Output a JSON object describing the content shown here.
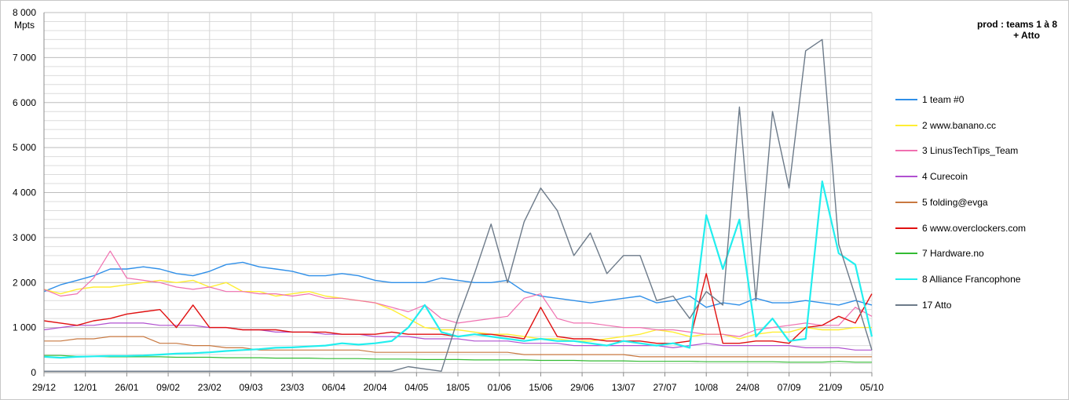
{
  "chart_data": {
    "type": "line",
    "title": [
      "prod : teams 1 à 8",
      "+ Atto"
    ],
    "y_unit": "Mpts",
    "ylim": [
      0,
      8000
    ],
    "y_ticks": [
      0,
      1000,
      2000,
      3000,
      4000,
      5000,
      6000,
      7000,
      8000
    ],
    "y_tick_labels": [
      "0",
      "1 000",
      "2 000",
      "3 000",
      "4 000",
      "5 000",
      "6 000",
      "7 000",
      "8 000"
    ],
    "x_tick_labels": [
      "29/12",
      "12/01",
      "26/01",
      "09/02",
      "23/02",
      "09/03",
      "23/03",
      "06/04",
      "20/04",
      "04/05",
      "18/05",
      "01/06",
      "15/06",
      "29/06",
      "13/07",
      "27/07",
      "10/08",
      "24/08",
      "07/09",
      "21/09",
      "05/10"
    ],
    "grid": true,
    "legend_position": "right",
    "series": [
      {
        "name": "1 team #0",
        "color": "#2f8fe8",
        "width": 1.4,
        "values": [
          1800,
          1950,
          2050,
          2150,
          2300,
          2300,
          2350,
          2300,
          2200,
          2150,
          2250,
          2400,
          2450,
          2350,
          2300,
          2250,
          2150,
          2150,
          2200,
          2150,
          2050,
          2000,
          2000,
          2000,
          2100,
          2050,
          2000,
          2000,
          2050,
          1800,
          1700,
          1650,
          1600,
          1550,
          1600,
          1650,
          1700,
          1550,
          1600,
          1700,
          1450,
          1550,
          1500,
          1650,
          1550,
          1550,
          1600,
          1550,
          1500,
          1600,
          1500
        ]
      },
      {
        "name": "2 www.banano.cc",
        "color": "#ffee33",
        "width": 1.4,
        "values": [
          1850,
          1750,
          1850,
          1900,
          1900,
          1950,
          2000,
          2050,
          2000,
          2050,
          1900,
          2000,
          1800,
          1800,
          1700,
          1750,
          1800,
          1700,
          1650,
          1600,
          1550,
          1400,
          1200,
          1000,
          950,
          950,
          900,
          850,
          850,
          800,
          750,
          750,
          700,
          700,
          750,
          800,
          850,
          950,
          900,
          800,
          850,
          850,
          750,
          850,
          900,
          900,
          1000,
          950,
          950,
          1000,
          1000
        ]
      },
      {
        "name": "3 LinusTechTips_Team",
        "color": "#f070b0",
        "width": 1.2,
        "values": [
          1850,
          1700,
          1750,
          2100,
          2700,
          2100,
          2050,
          2000,
          1900,
          1850,
          1900,
          1800,
          1800,
          1750,
          1750,
          1700,
          1750,
          1650,
          1650,
          1600,
          1550,
          1450,
          1350,
          1500,
          1200,
          1100,
          1150,
          1200,
          1250,
          1650,
          1750,
          1200,
          1100,
          1100,
          1050,
          1000,
          1000,
          950,
          950,
          900,
          850,
          850,
          800,
          950,
          1000,
          1050,
          1100,
          1050,
          1050,
          1450,
          1250
        ]
      },
      {
        "name": "4 Curecoin",
        "color": "#b050d0",
        "width": 1.2,
        "values": [
          950,
          1000,
          1050,
          1050,
          1100,
          1100,
          1100,
          1050,
          1050,
          1050,
          1000,
          1000,
          950,
          950,
          900,
          900,
          900,
          850,
          850,
          850,
          800,
          800,
          800,
          750,
          750,
          750,
          700,
          700,
          700,
          650,
          650,
          650,
          600,
          600,
          600,
          600,
          600,
          600,
          550,
          600,
          650,
          600,
          600,
          600,
          600,
          600,
          550,
          550,
          550,
          500,
          500
        ]
      },
      {
        "name": "5 folding@evga",
        "color": "#c87840",
        "width": 1.2,
        "values": [
          700,
          700,
          750,
          750,
          800,
          800,
          800,
          650,
          650,
          600,
          600,
          550,
          550,
          500,
          500,
          500,
          500,
          500,
          500,
          500,
          450,
          450,
          450,
          450,
          450,
          450,
          450,
          450,
          450,
          400,
          400,
          400,
          400,
          400,
          400,
          400,
          350,
          350,
          350,
          350,
          350,
          350,
          350,
          350,
          350,
          350,
          350,
          350,
          350,
          350,
          350
        ]
      },
      {
        "name": "6 www.overclockers.com",
        "color": "#e01010",
        "width": 1.4,
        "values": [
          1150,
          1100,
          1050,
          1150,
          1200,
          1300,
          1350,
          1400,
          1000,
          1500,
          1000,
          1000,
          950,
          950,
          950,
          900,
          900,
          900,
          850,
          850,
          850,
          900,
          850,
          850,
          850,
          800,
          850,
          850,
          800,
          750,
          1450,
          800,
          750,
          750,
          700,
          700,
          700,
          650,
          650,
          700,
          2200,
          650,
          650,
          700,
          700,
          650,
          1000,
          1050,
          1250,
          1100,
          1750
        ]
      },
      {
        "name": "7 Hardware.no",
        "color": "#33bb33",
        "width": 1.2,
        "values": [
          380,
          380,
          360,
          360,
          350,
          350,
          350,
          350,
          340,
          340,
          340,
          330,
          330,
          330,
          320,
          320,
          320,
          310,
          310,
          310,
          300,
          300,
          300,
          290,
          290,
          290,
          280,
          280,
          280,
          280,
          270,
          270,
          270,
          260,
          260,
          260,
          250,
          250,
          250,
          250,
          240,
          240,
          240,
          240,
          240,
          230,
          230,
          230,
          250,
          230,
          230
        ]
      },
      {
        "name": "8 Alliance Francophone",
        "color": "#22eeee",
        "width": 2.2,
        "values": [
          350,
          330,
          350,
          360,
          370,
          370,
          380,
          400,
          420,
          430,
          450,
          480,
          500,
          520,
          550,
          560,
          580,
          600,
          650,
          620,
          650,
          700,
          1000,
          1500,
          900,
          800,
          850,
          800,
          750,
          700,
          750,
          700,
          700,
          650,
          600,
          700,
          650,
          600,
          650,
          550,
          3500,
          2300,
          3400,
          800,
          1200,
          700,
          750,
          4250,
          2650,
          2400,
          800
        ]
      },
      {
        "name": "17 Atto",
        "color": "#6c7a89",
        "width": 1.4,
        "values": [
          30,
          30,
          30,
          30,
          30,
          30,
          30,
          30,
          30,
          30,
          30,
          30,
          30,
          30,
          30,
          30,
          30,
          30,
          30,
          30,
          30,
          30,
          130,
          80,
          30,
          1200,
          2200,
          3300,
          2000,
          3350,
          4100,
          3600,
          2600,
          3100,
          2200,
          2600,
          2600,
          1600,
          1700,
          1200,
          1800,
          1500,
          5900,
          1600,
          5800,
          4100,
          7150,
          7400,
          2850,
          1700,
          500
        ]
      }
    ]
  }
}
